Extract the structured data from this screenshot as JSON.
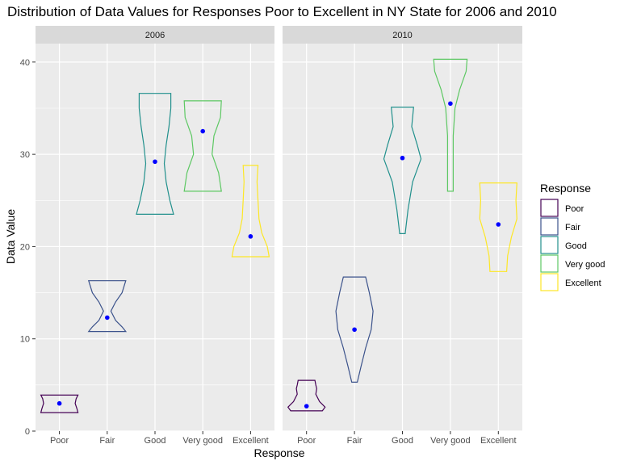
{
  "chart_data": {
    "type": "violin",
    "title": "Distribution of Data Values for Responses Poor to Excellent in NY State for 2006 and 2010",
    "xlabel": "Response",
    "ylabel": "Data Value",
    "ylim": [
      0,
      42
    ],
    "yticks": [
      0,
      10,
      20,
      30,
      40
    ],
    "categories": [
      "Poor",
      "Fair",
      "Good",
      "Very good",
      "Excellent"
    ],
    "grid": true,
    "legend_position": "right",
    "legend_title": "Response",
    "colors": {
      "Poor": "#440154",
      "Fair": "#3b528b",
      "Good": "#21908c",
      "Very good": "#5dc863",
      "Excellent": "#fde725",
      "mean_point": "#0000ff"
    },
    "panels": [
      {
        "strip": "2006",
        "violins": [
          {
            "category": "Poor",
            "min": 2.0,
            "max": 3.9,
            "mean": 3.0,
            "profile": [
              [
                2.0,
                1.0
              ],
              [
                2.4,
                0.95
              ],
              [
                3.0,
                0.85
              ],
              [
                3.5,
                0.9
              ],
              [
                3.9,
                1.0
              ]
            ]
          },
          {
            "category": "Fair",
            "min": 10.8,
            "max": 16.3,
            "mean": 12.3,
            "profile": [
              [
                10.8,
                1.0
              ],
              [
                11.3,
                0.8
              ],
              [
                12.0,
                0.45
              ],
              [
                13.0,
                0.2
              ],
              [
                14.0,
                0.45
              ],
              [
                15.0,
                0.8
              ],
              [
                16.3,
                1.0
              ]
            ]
          },
          {
            "category": "Good",
            "min": 23.5,
            "max": 36.6,
            "mean": 29.2,
            "profile": [
              [
                23.5,
                1.0
              ],
              [
                25.0,
                0.8
              ],
              [
                27.0,
                0.6
              ],
              [
                29.0,
                0.5
              ],
              [
                31.0,
                0.6
              ],
              [
                33.0,
                0.75
              ],
              [
                35.0,
                0.85
              ],
              [
                36.6,
                0.85
              ]
            ]
          },
          {
            "category": "Very good",
            "min": 26.0,
            "max": 35.8,
            "mean": 32.5,
            "profile": [
              [
                26.0,
                1.0
              ],
              [
                28.0,
                0.85
              ],
              [
                30.0,
                0.5
              ],
              [
                32.0,
                0.6
              ],
              [
                34.0,
                0.95
              ],
              [
                35.8,
                1.0
              ]
            ]
          },
          {
            "category": "Excellent",
            "min": 18.9,
            "max": 28.8,
            "mean": 21.1,
            "profile": [
              [
                18.9,
                1.0
              ],
              [
                20.0,
                0.9
              ],
              [
                21.5,
                0.6
              ],
              [
                23.0,
                0.45
              ],
              [
                25.0,
                0.4
              ],
              [
                27.0,
                0.35
              ],
              [
                28.8,
                0.4
              ]
            ]
          }
        ]
      },
      {
        "strip": "2010",
        "violins": [
          {
            "category": "Poor",
            "min": 2.2,
            "max": 5.5,
            "mean": 2.7,
            "profile": [
              [
                2.2,
                0.85
              ],
              [
                2.6,
                1.0
              ],
              [
                3.2,
                0.7
              ],
              [
                4.0,
                0.5
              ],
              [
                4.6,
                0.55
              ],
              [
                5.0,
                0.5
              ],
              [
                5.5,
                0.45
              ]
            ]
          },
          {
            "category": "Fair",
            "min": 5.3,
            "max": 16.7,
            "mean": 11.0,
            "profile": [
              [
                5.3,
                0.15
              ],
              [
                7.0,
                0.35
              ],
              [
                9.0,
                0.6
              ],
              [
                11.0,
                0.9
              ],
              [
                13.0,
                1.0
              ],
              [
                15.0,
                0.8
              ],
              [
                16.7,
                0.6
              ]
            ]
          },
          {
            "category": "Good",
            "min": 21.4,
            "max": 35.1,
            "mean": 29.6,
            "profile": [
              [
                21.4,
                0.15
              ],
              [
                24.0,
                0.3
              ],
              [
                27.0,
                0.55
              ],
              [
                29.5,
                1.0
              ],
              [
                31.0,
                0.8
              ],
              [
                33.0,
                0.5
              ],
              [
                35.1,
                0.6
              ]
            ]
          },
          {
            "category": "Very good",
            "min": 26.0,
            "max": 40.3,
            "mean": 35.5,
            "profile": [
              [
                26.0,
                0.15
              ],
              [
                29.0,
                0.15
              ],
              [
                32.0,
                0.15
              ],
              [
                35.0,
                0.25
              ],
              [
                37.0,
                0.5
              ],
              [
                39.0,
                0.85
              ],
              [
                40.3,
                0.9
              ]
            ]
          },
          {
            "category": "Excellent",
            "min": 17.3,
            "max": 26.9,
            "mean": 22.4,
            "profile": [
              [
                17.3,
                0.45
              ],
              [
                19.0,
                0.5
              ],
              [
                21.0,
                0.7
              ],
              [
                23.0,
                1.0
              ],
              [
                25.0,
                0.95
              ],
              [
                26.9,
                1.0
              ]
            ]
          }
        ]
      }
    ]
  }
}
